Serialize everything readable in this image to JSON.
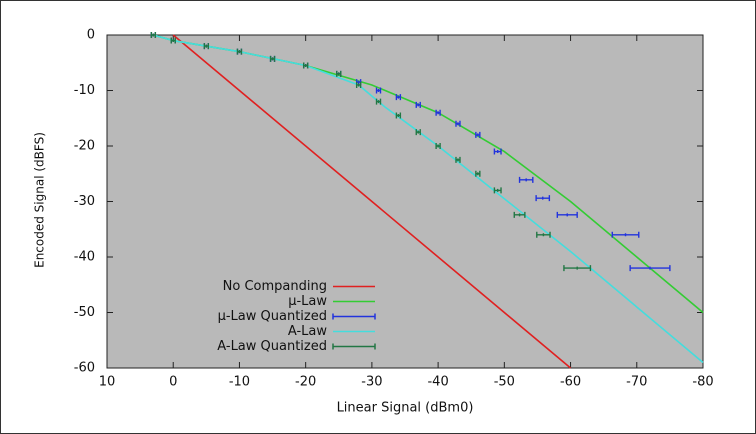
{
  "chart_data": {
    "type": "line",
    "xlabel": "Linear  Signal (dBm0)",
    "ylabel": "Encoded Signal (dBFS)",
    "xlim": [
      10,
      -80
    ],
    "xticks": [
      10,
      0,
      -10,
      -20,
      -30,
      -40,
      -50,
      -60,
      -70,
      -80
    ],
    "ylim": [
      -60,
      0
    ],
    "yticks": [
      0,
      -10,
      -20,
      -30,
      -40,
      -50,
      -60
    ],
    "grid": false,
    "legend": "bottom-left",
    "background": "#b9b9b9",
    "series": [
      {
        "name": "No Companding",
        "color": "#e02020",
        "style": "line",
        "x": [
          0,
          -60
        ],
        "values": [
          0,
          -60
        ]
      },
      {
        "name": "µ-Law",
        "color": "#33cc33",
        "style": "line",
        "x": [
          3,
          0,
          -10,
          -20,
          -30,
          -40,
          -50,
          -60,
          -70,
          -80
        ],
        "values": [
          0,
          -1,
          -3,
          -5.5,
          -9,
          -14,
          -21,
          -30,
          -40,
          -50
        ]
      },
      {
        "name": "µ-Law Quantized",
        "color": "#2233dd",
        "style": "errorbar",
        "x": [
          3,
          0,
          -5,
          -10,
          -15,
          -20,
          -25,
          -28,
          -31,
          -34,
          -37,
          -40,
          -43,
          -46,
          -49,
          -53.3,
          -55.8,
          -59.5,
          -68.3,
          -72
        ],
        "values": [
          0,
          -1,
          -2,
          -3,
          -4.3,
          -5.5,
          -7,
          -8.5,
          -10,
          -11.2,
          -12.6,
          -14,
          -16,
          -18,
          -21,
          -26.1,
          -29.4,
          -32.4,
          -36,
          -42
        ],
        "xerr": [
          0.3,
          0.3,
          0.3,
          0.3,
          0.3,
          0.3,
          0.3,
          0.3,
          0.3,
          0.3,
          0.3,
          0.3,
          0.3,
          0.3,
          0.5,
          1,
          1,
          1.5,
          2,
          3
        ]
      },
      {
        "name": "A-Law",
        "color": "#44dddd",
        "style": "line",
        "x": [
          3,
          0,
          -10,
          -20,
          -28,
          -32,
          -36,
          -40,
          -50,
          -60,
          -70,
          -80
        ],
        "values": [
          0,
          -1,
          -3,
          -5.5,
          -9,
          -13,
          -16.5,
          -20,
          -29.5,
          -39,
          -49,
          -59
        ]
      },
      {
        "name": "A-Law Quantized",
        "color": "#227744",
        "style": "errorbar",
        "x": [
          3,
          0,
          -5,
          -10,
          -15,
          -20,
          -25,
          -28,
          -31,
          -34,
          -37,
          -40,
          -43,
          -46,
          -49,
          -52.3,
          -55.9,
          -61
        ],
        "values": [
          0,
          -1,
          -2,
          -3,
          -4.3,
          -5.5,
          -7,
          -9,
          -12,
          -14.5,
          -17.5,
          -20,
          -22.5,
          -25,
          -28,
          -32.4,
          -36,
          -42
        ],
        "xerr": [
          0.3,
          0.3,
          0.3,
          0.3,
          0.3,
          0.3,
          0.3,
          0.3,
          0.3,
          0.3,
          0.3,
          0.3,
          0.3,
          0.3,
          0.5,
          0.8,
          1,
          2
        ]
      }
    ]
  }
}
